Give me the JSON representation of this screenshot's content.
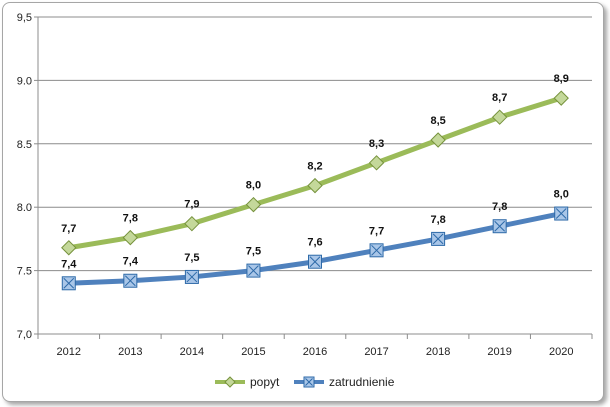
{
  "chart_data": {
    "type": "line",
    "categories": [
      "2012",
      "2013",
      "2014",
      "2015",
      "2016",
      "2017",
      "2018",
      "2019",
      "2020"
    ],
    "ylim": [
      7.0,
      9.5
    ],
    "yticks": [
      7.0,
      7.5,
      8.0,
      8.5,
      9.0,
      9.5
    ],
    "ytick_labels": [
      "7,0",
      "7.5",
      "8.0",
      "8.5",
      "9.0",
      "9,5"
    ],
    "grid": true,
    "legend_position": "bottom",
    "series": [
      {
        "name": "popyt",
        "color": "#9bbb59",
        "marker": "diamond",
        "values": [
          7.68,
          7.76,
          7.87,
          8.02,
          8.17,
          8.35,
          8.53,
          8.71,
          8.86
        ],
        "labels": [
          "7,7",
          "7,8",
          "7,9",
          "8,0",
          "8,2",
          "8,3",
          "8,5",
          "8,7",
          "8,9"
        ]
      },
      {
        "name": "zatrudnienie",
        "color": "#4f81bd",
        "marker": "square",
        "values": [
          7.4,
          7.42,
          7.45,
          7.5,
          7.57,
          7.66,
          7.75,
          7.85,
          7.95
        ],
        "labels": [
          "7,4",
          "7,4",
          "7,5",
          "7,5",
          "7,6",
          "7,7",
          "7,8",
          "7,8",
          "8,0"
        ]
      }
    ]
  }
}
